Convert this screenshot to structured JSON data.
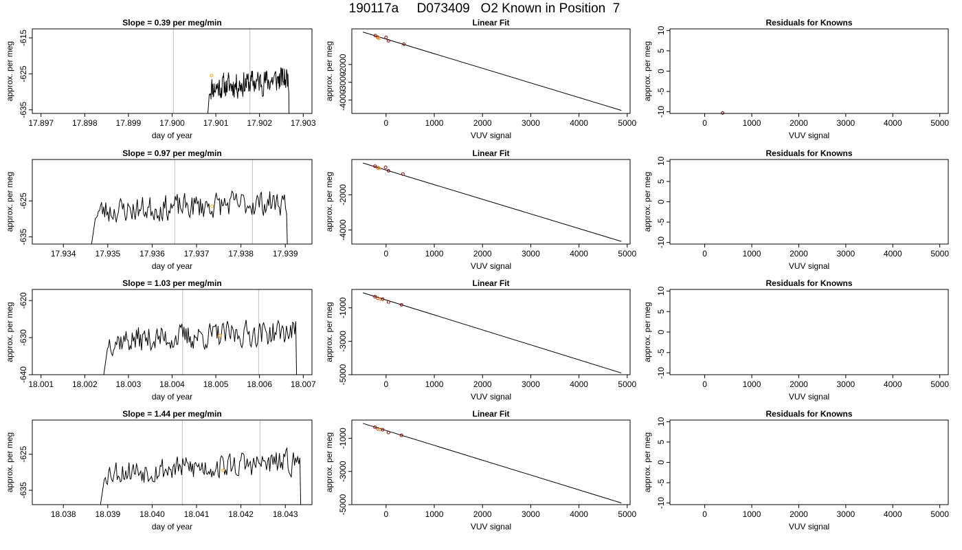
{
  "page": {
    "title": "190117a     D073409   O2 Known in Position  7"
  },
  "chart_data": [
    {
      "type": "line",
      "row": 0,
      "panel": "time",
      "title": "Slope =  0.39  per meg/min",
      "xlabel": "day of year",
      "ylabel": "approx. per meg",
      "xlim": [
        17.8968,
        17.9032
      ],
      "ylim": [
        -636.0,
        -612.5
      ],
      "xticks": [
        17.897,
        17.898,
        17.899,
        17.9,
        17.901,
        17.902,
        17.903
      ],
      "xtick_labels": [
        "17.897",
        "17.898",
        "17.899",
        "17.900",
        "17.901",
        "17.902",
        "17.903"
      ],
      "yticks": [
        -615,
        -625,
        -635
      ],
      "ytick_labels": [
        "-615",
        "-625",
        "-635"
      ],
      "vlines": [
        17.90003,
        17.90178
      ],
      "marker": {
        "x": 17.9009,
        "y": -625.5
      },
      "start": 17.9008,
      "end": 17.9027,
      "base": -629,
      "seed": 11
    },
    {
      "type": "line",
      "row": 1,
      "panel": "time",
      "title": "Slope =  0.97  per meg/min",
      "xlabel": "day of year",
      "ylabel": "approx. per meg",
      "xlim": [
        17.9333,
        17.9396
      ],
      "ylim": [
        -637.0,
        -613.5
      ],
      "xticks": [
        17.934,
        17.935,
        17.936,
        17.937,
        17.938,
        17.939
      ],
      "xtick_labels": [
        "17.934",
        "17.935",
        "17.936",
        "17.937",
        "17.938",
        "17.939"
      ],
      "yticks": [
        -625,
        -635
      ],
      "ytick_labels": [
        "-625",
        "-635"
      ],
      "vlines": [
        17.93651,
        17.93826
      ],
      "marker": {
        "x": 17.93735,
        "y": -626.5
      },
      "start": 17.9346,
      "end": 17.9391,
      "base": -628,
      "seed": 23
    },
    {
      "type": "line",
      "row": 2,
      "panel": "time",
      "title": "Slope =  1.03  per meg/min",
      "xlabel": "day of year",
      "ylabel": "approx. per meg",
      "xlim": [
        18.0008,
        18.0072
      ],
      "ylim": [
        -640.0,
        -617.0
      ],
      "xticks": [
        18.001,
        18.002,
        18.003,
        18.004,
        18.005,
        18.006,
        18.007
      ],
      "xtick_labels": [
        "18.001",
        "18.002",
        "18.003",
        "18.004",
        "18.005",
        "18.006",
        "18.007"
      ],
      "yticks": [
        -620,
        -630,
        -640
      ],
      "ytick_labels": [
        "-620",
        "-630",
        "-640"
      ],
      "vlines": [
        18.00424,
        18.00598
      ],
      "marker": {
        "x": 18.0051,
        "y": -629.5
      },
      "start": 18.0024,
      "end": 18.0069,
      "base": -631,
      "seed": 37
    },
    {
      "type": "line",
      "row": 3,
      "panel": "time",
      "title": "Slope =  1.44  per meg/min",
      "xlabel": "day of year",
      "ylabel": "approx. per meg",
      "xlim": [
        18.0373,
        18.0436
      ],
      "ylim": [
        -639.0,
        -615.5
      ],
      "xticks": [
        18.038,
        18.039,
        18.04,
        18.041,
        18.042,
        18.043
      ],
      "xtick_labels": [
        "18.038",
        "18.039",
        "18.040",
        "18.041",
        "18.042",
        "18.043"
      ],
      "yticks": [
        -625,
        -635
      ],
      "ytick_labels": [
        "-625",
        "-635"
      ],
      "vlines": [
        18.04068,
        18.04243
      ],
      "marker": {
        "x": 18.0416,
        "y": -629.5
      },
      "start": 18.0388,
      "end": 18.0434,
      "base": -630,
      "seed": 53
    },
    {
      "type": "scatter",
      "row": 0,
      "panel": "fit",
      "title": "Linear Fit",
      "xlabel": "VUV signal",
      "ylabel": "approx. per meg",
      "xlim": [
        -710,
        5060
      ],
      "ylim": [
        -4750,
        0
      ],
      "xticks": [
        0,
        1000,
        2000,
        3000,
        4000,
        5000
      ],
      "xtick_labels": [
        "0",
        "1000",
        "2000",
        "3000",
        "4000",
        "5000"
      ],
      "yticks": [
        -2000,
        -3000,
        -4000
      ],
      "ytick_labels": [
        "-2000",
        "-3000",
        "-4000"
      ],
      "line": {
        "x": [
          -480,
          4880
        ],
        "y": [
          -180,
          -4580
        ]
      },
      "points": [
        {
          "x": -220,
          "y": -380,
          "color": "#8b0000"
        },
        {
          "x": -170,
          "y": -470,
          "color": "#cc3300"
        },
        {
          "x": -150,
          "y": -530,
          "color": "#ff8c00"
        },
        {
          "x": 0,
          "y": -480,
          "color": "#8b0000"
        },
        {
          "x": 50,
          "y": -670,
          "color": "#8b0000"
        },
        {
          "x": 370,
          "y": -860,
          "color": "#8b0000"
        }
      ]
    },
    {
      "type": "scatter",
      "row": 1,
      "panel": "fit",
      "title": "Linear Fit",
      "xlabel": "VUV signal",
      "ylabel": "approx. per meg",
      "xlim": [
        -710,
        5060
      ],
      "ylim": [
        -4800,
        0
      ],
      "xticks": [
        0,
        1000,
        2000,
        3000,
        4000,
        5000
      ],
      "xtick_labels": [
        "0",
        "1000",
        "2000",
        "3000",
        "4000",
        "5000"
      ],
      "yticks": [
        -2000,
        -4000
      ],
      "ytick_labels": [
        "-2000",
        "-4000"
      ],
      "line": {
        "x": [
          -480,
          4880
        ],
        "y": [
          -200,
          -4650
        ]
      },
      "points": [
        {
          "x": -230,
          "y": -380,
          "color": "#8b0000"
        },
        {
          "x": -170,
          "y": -470,
          "color": "#cc3300"
        },
        {
          "x": -140,
          "y": -510,
          "color": "#ff8c00"
        },
        {
          "x": -10,
          "y": -450,
          "color": "#8b0000"
        },
        {
          "x": 50,
          "y": -640,
          "color": "#8b0000"
        },
        {
          "x": 350,
          "y": -830,
          "color": "#8b0000"
        }
      ]
    },
    {
      "type": "scatter",
      "row": 2,
      "panel": "fit",
      "title": "Linear Fit",
      "xlabel": "VUV signal",
      "ylabel": "approx. per meg",
      "xlim": [
        -710,
        5060
      ],
      "ylim": [
        -5000,
        100
      ],
      "xticks": [
        0,
        1000,
        2000,
        3000,
        4000,
        5000
      ],
      "xtick_labels": [
        "0",
        "1000",
        "2000",
        "3000",
        "4000",
        "5000"
      ],
      "yticks": [
        -1000,
        -3000,
        -5000
      ],
      "ytick_labels": [
        "-1000",
        "-3000",
        "-5000"
      ],
      "line": {
        "x": [
          -480,
          4880
        ],
        "y": [
          -100,
          -4900
        ]
      },
      "points": [
        {
          "x": -230,
          "y": -330,
          "color": "#8b0000"
        },
        {
          "x": -170,
          "y": -430,
          "color": "#cc3300"
        },
        {
          "x": -120,
          "y": -470,
          "color": "#ff8c00"
        },
        {
          "x": -70,
          "y": -480,
          "color": "#8b0000"
        },
        {
          "x": 50,
          "y": -650,
          "color": "#8b0000"
        },
        {
          "x": 320,
          "y": -820,
          "color": "#8b0000"
        }
      ]
    },
    {
      "type": "scatter",
      "row": 3,
      "panel": "fit",
      "title": "Linear Fit",
      "xlabel": "VUV signal",
      "ylabel": "approx. per meg",
      "xlim": [
        -710,
        5060
      ],
      "ylim": [
        -5000,
        100
      ],
      "xticks": [
        0,
        1000,
        2000,
        3000,
        4000,
        5000
      ],
      "xtick_labels": [
        "0",
        "1000",
        "2000",
        "3000",
        "4000",
        "5000"
      ],
      "yticks": [
        -1000,
        -3000,
        -5000
      ],
      "ytick_labels": [
        "-1000",
        "-3000",
        "-5000"
      ],
      "line": {
        "x": [
          -480,
          4880
        ],
        "y": [
          -100,
          -4900
        ]
      },
      "points": [
        {
          "x": -230,
          "y": -330,
          "color": "#8b0000"
        },
        {
          "x": -170,
          "y": -430,
          "color": "#cc3300"
        },
        {
          "x": -120,
          "y": -470,
          "color": "#ff8c00"
        },
        {
          "x": -70,
          "y": -480,
          "color": "#8b0000"
        },
        {
          "x": 50,
          "y": -650,
          "color": "#8b0000"
        },
        {
          "x": 320,
          "y": -820,
          "color": "#8b0000"
        }
      ]
    },
    {
      "type": "scatter",
      "row": 0,
      "panel": "resid",
      "title": "Residuals for Knowns",
      "xlabel": "VUV signal",
      "ylabel": "approx. per meg",
      "xlim": [
        -740,
        5180
      ],
      "ylim": [
        -10.4,
        10.4
      ],
      "xticks": [
        0,
        1000,
        2000,
        3000,
        4000,
        5000
      ],
      "xtick_labels": [
        "0",
        "1000",
        "2000",
        "3000",
        "4000",
        "5000"
      ],
      "yticks": [
        10,
        5,
        0,
        -5,
        -10
      ],
      "ytick_labels": [
        "10",
        "5",
        "0",
        "-5",
        "-10"
      ],
      "points": [
        {
          "x": 380,
          "y": -10.3,
          "color": "#8b0000"
        }
      ]
    },
    {
      "type": "scatter",
      "row": 1,
      "panel": "resid",
      "title": "Residuals for Knowns",
      "xlabel": "VUV signal",
      "ylabel": "approx. per meg",
      "xlim": [
        -740,
        5180
      ],
      "ylim": [
        -10.4,
        10.4
      ],
      "xticks": [
        0,
        1000,
        2000,
        3000,
        4000,
        5000
      ],
      "xtick_labels": [
        "0",
        "1000",
        "2000",
        "3000",
        "4000",
        "5000"
      ],
      "yticks": [
        10,
        5,
        0,
        -5,
        -10
      ],
      "ytick_labels": [
        "10",
        "5",
        "0",
        "-5",
        "-10"
      ],
      "points": []
    },
    {
      "type": "scatter",
      "row": 2,
      "panel": "resid",
      "title": "Residuals for Knowns",
      "xlabel": "VUV signal",
      "ylabel": "approx. per meg",
      "xlim": [
        -740,
        5180
      ],
      "ylim": [
        -10.4,
        10.4
      ],
      "xticks": [
        0,
        1000,
        2000,
        3000,
        4000,
        5000
      ],
      "xtick_labels": [
        "0",
        "1000",
        "2000",
        "3000",
        "4000",
        "5000"
      ],
      "yticks": [
        10,
        5,
        0,
        -5,
        -10
      ],
      "ytick_labels": [
        "10",
        "5",
        "0",
        "-5",
        "-10"
      ],
      "points": []
    },
    {
      "type": "scatter",
      "row": 3,
      "panel": "resid",
      "title": "Residuals for Knowns",
      "xlabel": "VUV signal",
      "ylabel": "approx. per meg",
      "xlim": [
        -740,
        5180
      ],
      "ylim": [
        -10.4,
        10.4
      ],
      "xticks": [
        0,
        1000,
        2000,
        3000,
        4000,
        5000
      ],
      "xtick_labels": [
        "0",
        "1000",
        "2000",
        "3000",
        "4000",
        "5000"
      ],
      "yticks": [
        10,
        5,
        0,
        -5,
        -10
      ],
      "ytick_labels": [
        "10",
        "5",
        "0",
        "-5",
        "-10"
      ],
      "points": []
    }
  ]
}
